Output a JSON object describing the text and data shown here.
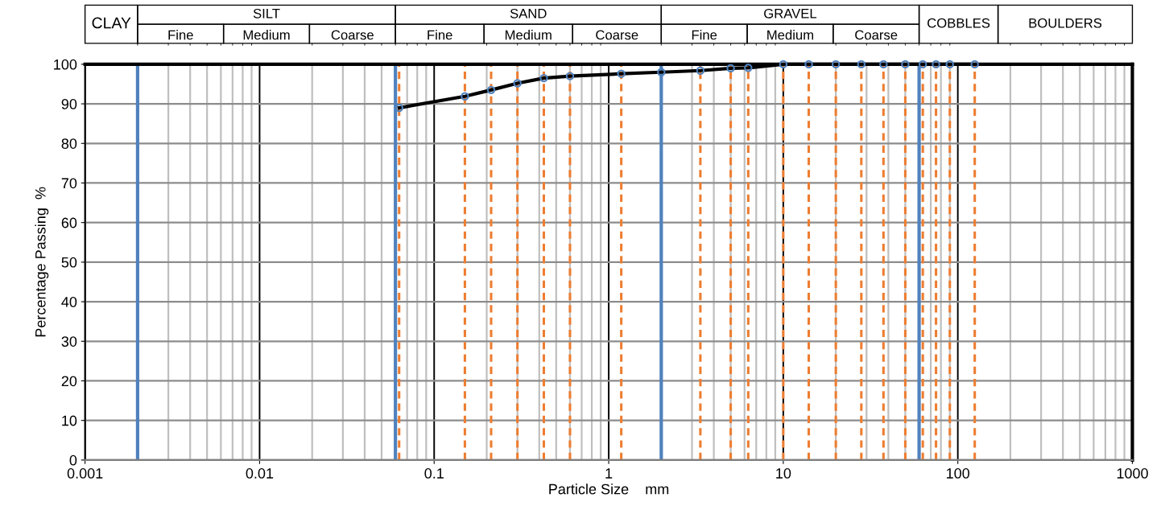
{
  "chart_data": {
    "type": "line",
    "xlabel": "Particle Size    mm",
    "ylabel": "Percentage Passing  %",
    "log": "x",
    "grid": true,
    "marker": "circle",
    "line_style": "solid",
    "xlim": [
      0.001,
      1000
    ],
    "xticks": [
      0.001,
      0.01,
      0.1,
      1,
      10,
      100,
      1000
    ],
    "ylim": [
      0,
      100
    ],
    "yticks": [
      0,
      10,
      20,
      30,
      40,
      50,
      60,
      70,
      80,
      90,
      100
    ],
    "x": [
      0.063,
      0.15,
      0.212,
      0.3,
      0.425,
      0.6,
      1.18,
      2,
      3.35,
      5,
      6.3,
      10,
      14,
      20,
      28,
      37.5,
      50,
      63,
      75,
      90,
      125
    ],
    "series": [
      {
        "color": "#000000",
        "values": [
          89,
          91.9,
          93.5,
          95.2,
          96.5,
          97,
          97.6,
          98,
          98.4,
          99,
          99.1,
          100,
          100,
          100,
          100,
          100,
          100,
          100,
          100,
          100,
          100
        ]
      }
    ],
    "ref_lines": [
      {
        "axis": "x",
        "value": 0.002,
        "color": "#4f81bd",
        "line_style": "solid"
      },
      {
        "axis": "x",
        "value": 0.06,
        "color": "#4f81bd",
        "line_style": "solid"
      },
      {
        "axis": "x",
        "value": 2,
        "color": "#4f81bd",
        "line_style": "solid"
      },
      {
        "axis": "x",
        "value": 60,
        "color": "#4f81bd",
        "line_style": "solid"
      },
      {
        "axis": "x",
        "value": 0.063,
        "color": "#ed7d31",
        "line_style": "dashed"
      },
      {
        "axis": "x",
        "value": 0.15,
        "color": "#ed7d31",
        "line_style": "dashed"
      },
      {
        "axis": "x",
        "value": 0.212,
        "color": "#ed7d31",
        "line_style": "dashed"
      },
      {
        "axis": "x",
        "value": 0.3,
        "color": "#ed7d31",
        "line_style": "dashed"
      },
      {
        "axis": "x",
        "value": 0.425,
        "color": "#ed7d31",
        "line_style": "dashed"
      },
      {
        "axis": "x",
        "value": 0.6,
        "color": "#ed7d31",
        "line_style": "dashed"
      },
      {
        "axis": "x",
        "value": 1.18,
        "color": "#ed7d31",
        "line_style": "dashed"
      },
      {
        "axis": "x",
        "value": 3.35,
        "color": "#ed7d31",
        "line_style": "dashed"
      },
      {
        "axis": "x",
        "value": 5,
        "color": "#ed7d31",
        "line_style": "dashed"
      },
      {
        "axis": "x",
        "value": 6.3,
        "color": "#ed7d31",
        "line_style": "dashed"
      },
      {
        "axis": "x",
        "value": 10,
        "color": "#ed7d31",
        "line_style": "dashed"
      },
      {
        "axis": "x",
        "value": 14,
        "color": "#ed7d31",
        "line_style": "dashed"
      },
      {
        "axis": "x",
        "value": 20,
        "color": "#ed7d31",
        "line_style": "dashed"
      },
      {
        "axis": "x",
        "value": 28,
        "color": "#ed7d31",
        "line_style": "dashed"
      },
      {
        "axis": "x",
        "value": 37.5,
        "color": "#ed7d31",
        "line_style": "dashed"
      },
      {
        "axis": "x",
        "value": 50,
        "color": "#ed7d31",
        "line_style": "dashed"
      },
      {
        "axis": "x",
        "value": 63,
        "color": "#ed7d31",
        "line_style": "dashed"
      },
      {
        "axis": "x",
        "value": 75,
        "color": "#ed7d31",
        "line_style": "dashed"
      },
      {
        "axis": "x",
        "value": 90,
        "color": "#ed7d31",
        "line_style": "dashed"
      },
      {
        "axis": "x",
        "value": 125,
        "color": "#ed7d31",
        "line_style": "dashed"
      }
    ],
    "annotations": [
      "CLAY",
      "SILT",
      "Fine",
      "Medium",
      "Coarse",
      "SAND",
      "Fine",
      "Medium",
      "Coarse",
      "GRAVEL",
      "Fine",
      "Medium",
      "Coarse",
      "COBBLES",
      "BOULDERS"
    ]
  }
}
